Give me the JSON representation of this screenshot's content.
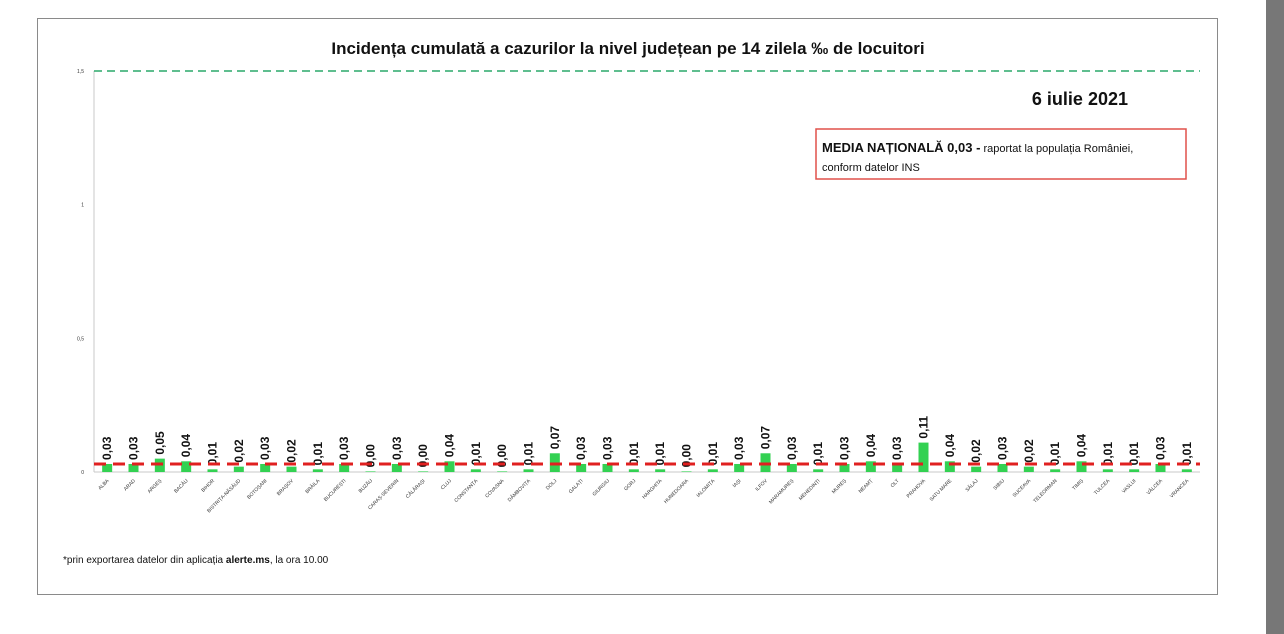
{
  "chart_data": {
    "type": "bar",
    "title": "Incidența cumulată a cazurilor la nivel județean pe 14 zilela ‰ de locuitori",
    "date_label": "6 iulie 2021",
    "ylim": [
      0,
      1.5
    ],
    "yticks": [
      "0",
      "0,5",
      "1",
      "1,5"
    ],
    "ytick_values": [
      0,
      0.5,
      1,
      1.5
    ],
    "threshold_value": 1.5,
    "national_average": 0.03,
    "grid": false,
    "bar_color": "#33d152",
    "average_line_color": "#e02020",
    "threshold_line_color": "#2aa86a",
    "categories": [
      "ALBA",
      "ARAD",
      "ARGEȘ",
      "BACĂU",
      "BIHOR",
      "BISTRIȚA-NĂSĂUD",
      "BOTOȘANI",
      "BRAȘOV",
      "BRĂILA",
      "BUCUREȘTI",
      "BUZĂU",
      "CARAȘ-SEVERIN",
      "CĂLĂRAȘI",
      "CLUJ",
      "CONSTANȚA",
      "COVASNA",
      "DÂMBOVIȚA",
      "DOLJ",
      "GALAȚI",
      "GIURGIU",
      "GORJ",
      "HARGHITA",
      "HUNEDOARA",
      "IALOMIȚA",
      "IAȘI",
      "ILFOV",
      "MARAMUREȘ",
      "MEHEDINȚI",
      "MUREȘ",
      "NEAMȚ",
      "OLT",
      "PRAHOVA",
      "SATU MARE",
      "SĂLAJ",
      "SIBIU",
      "SUCEAVA",
      "TELEORMAN",
      "TIMIȘ",
      "TULCEA",
      "VASLUI",
      "VÂLCEA",
      "VRANCEA"
    ],
    "values": [
      0.03,
      0.03,
      0.05,
      0.04,
      0.01,
      0.02,
      0.03,
      0.02,
      0.01,
      0.03,
      0.0,
      0.03,
      0.0,
      0.04,
      0.01,
      0.0,
      0.01,
      0.07,
      0.03,
      0.03,
      0.01,
      0.01,
      0.0,
      0.01,
      0.03,
      0.07,
      0.03,
      0.01,
      0.03,
      0.04,
      0.03,
      0.11,
      0.04,
      0.02,
      0.03,
      0.02,
      0.01,
      0.04,
      0.01,
      0.01,
      0.03,
      0.01
    ],
    "value_labels": [
      "0,03",
      "0,03",
      "0,05",
      "0,04",
      "0,01",
      "0,02",
      "0,03",
      "0,02",
      "0,01",
      "0,03",
      "0,00",
      "0,03",
      "0,00",
      "0,04",
      "0,01",
      "0,00",
      "0,01",
      "0,07",
      "0,03",
      "0,03",
      "0,01",
      "0,01",
      "0,00",
      "0,01",
      "0,03",
      "0,07",
      "0,03",
      "0,01",
      "0,03",
      "0,04",
      "0,03",
      "0,11",
      "0,04",
      "0,02",
      "0,03",
      "0,02",
      "0,01",
      "0,04",
      "0,01",
      "0,01",
      "0,03",
      "0,01"
    ]
  },
  "legend_box": {
    "bold": "MEDIA NAȚIONALĂ 0,03 -",
    "line1_rest": " raportat la populația României,",
    "line2": "conform datelor INS"
  },
  "footnote": {
    "prefix": "*prin exportarea datelor din aplicația ",
    "bold": "alerte.ms",
    "suffix": ", la ora 10.00"
  }
}
